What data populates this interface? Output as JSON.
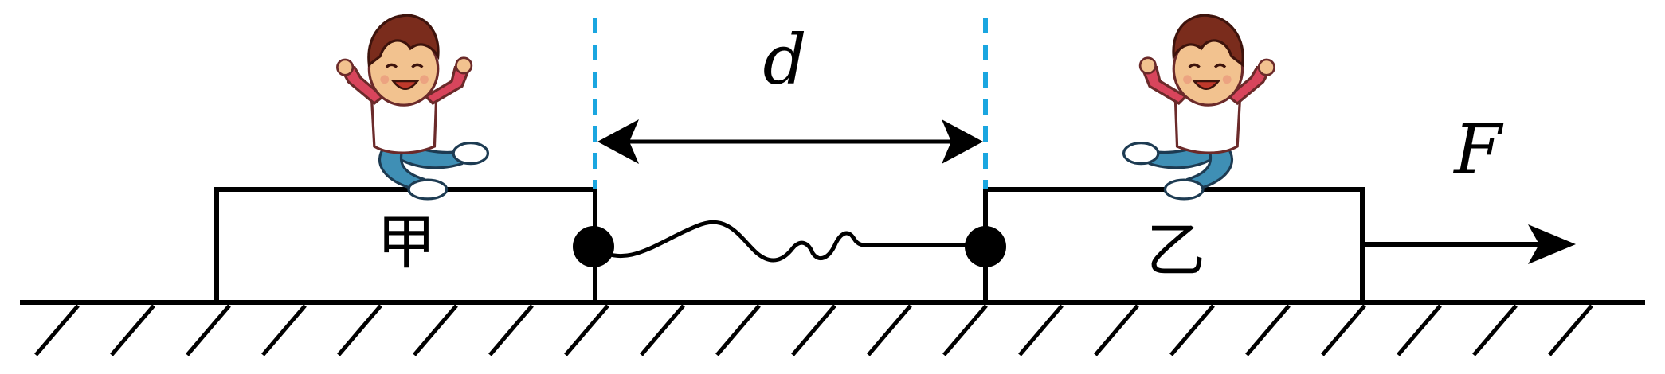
{
  "labels": {
    "distance": "d",
    "force": "F",
    "block_left": "甲",
    "block_right": "乙"
  },
  "colors": {
    "stroke": "#000000",
    "guide": "#1aa6e0",
    "skin": "#f2c28f",
    "hair": "#7a2c1c",
    "shirt": "#ffffff",
    "stripe": "#d8455c",
    "pants": "#3f8fb5",
    "shoe": "#ffffff"
  },
  "icons": {
    "person_left": "cartoon-boy-icon",
    "person_right": "cartoon-boy-icon"
  }
}
